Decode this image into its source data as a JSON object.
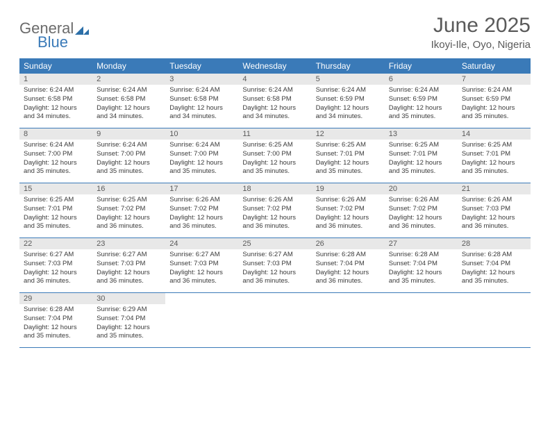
{
  "logo": {
    "text1": "General",
    "text2": "Blue",
    "mark_color": "#2c6fa8"
  },
  "title": "June 2025",
  "location": "Ikoyi-Ile, Oyo, Nigeria",
  "header_bg": "#3a7ab8",
  "header_fg": "#ffffff",
  "daynum_bg": "#e8e8e8",
  "border_color": "#3a7ab8",
  "weekdays": [
    "Sunday",
    "Monday",
    "Tuesday",
    "Wednesday",
    "Thursday",
    "Friday",
    "Saturday"
  ],
  "weeks": [
    [
      {
        "n": "1",
        "sunrise": "6:24 AM",
        "sunset": "6:58 PM",
        "daylight": "12 hours and 34 minutes."
      },
      {
        "n": "2",
        "sunrise": "6:24 AM",
        "sunset": "6:58 PM",
        "daylight": "12 hours and 34 minutes."
      },
      {
        "n": "3",
        "sunrise": "6:24 AM",
        "sunset": "6:58 PM",
        "daylight": "12 hours and 34 minutes."
      },
      {
        "n": "4",
        "sunrise": "6:24 AM",
        "sunset": "6:58 PM",
        "daylight": "12 hours and 34 minutes."
      },
      {
        "n": "5",
        "sunrise": "6:24 AM",
        "sunset": "6:59 PM",
        "daylight": "12 hours and 34 minutes."
      },
      {
        "n": "6",
        "sunrise": "6:24 AM",
        "sunset": "6:59 PM",
        "daylight": "12 hours and 35 minutes."
      },
      {
        "n": "7",
        "sunrise": "6:24 AM",
        "sunset": "6:59 PM",
        "daylight": "12 hours and 35 minutes."
      }
    ],
    [
      {
        "n": "8",
        "sunrise": "6:24 AM",
        "sunset": "7:00 PM",
        "daylight": "12 hours and 35 minutes."
      },
      {
        "n": "9",
        "sunrise": "6:24 AM",
        "sunset": "7:00 PM",
        "daylight": "12 hours and 35 minutes."
      },
      {
        "n": "10",
        "sunrise": "6:24 AM",
        "sunset": "7:00 PM",
        "daylight": "12 hours and 35 minutes."
      },
      {
        "n": "11",
        "sunrise": "6:25 AM",
        "sunset": "7:00 PM",
        "daylight": "12 hours and 35 minutes."
      },
      {
        "n": "12",
        "sunrise": "6:25 AM",
        "sunset": "7:01 PM",
        "daylight": "12 hours and 35 minutes."
      },
      {
        "n": "13",
        "sunrise": "6:25 AM",
        "sunset": "7:01 PM",
        "daylight": "12 hours and 35 minutes."
      },
      {
        "n": "14",
        "sunrise": "6:25 AM",
        "sunset": "7:01 PM",
        "daylight": "12 hours and 35 minutes."
      }
    ],
    [
      {
        "n": "15",
        "sunrise": "6:25 AM",
        "sunset": "7:01 PM",
        "daylight": "12 hours and 35 minutes."
      },
      {
        "n": "16",
        "sunrise": "6:25 AM",
        "sunset": "7:02 PM",
        "daylight": "12 hours and 36 minutes."
      },
      {
        "n": "17",
        "sunrise": "6:26 AM",
        "sunset": "7:02 PM",
        "daylight": "12 hours and 36 minutes."
      },
      {
        "n": "18",
        "sunrise": "6:26 AM",
        "sunset": "7:02 PM",
        "daylight": "12 hours and 36 minutes."
      },
      {
        "n": "19",
        "sunrise": "6:26 AM",
        "sunset": "7:02 PM",
        "daylight": "12 hours and 36 minutes."
      },
      {
        "n": "20",
        "sunrise": "6:26 AM",
        "sunset": "7:02 PM",
        "daylight": "12 hours and 36 minutes."
      },
      {
        "n": "21",
        "sunrise": "6:26 AM",
        "sunset": "7:03 PM",
        "daylight": "12 hours and 36 minutes."
      }
    ],
    [
      {
        "n": "22",
        "sunrise": "6:27 AM",
        "sunset": "7:03 PM",
        "daylight": "12 hours and 36 minutes."
      },
      {
        "n": "23",
        "sunrise": "6:27 AM",
        "sunset": "7:03 PM",
        "daylight": "12 hours and 36 minutes."
      },
      {
        "n": "24",
        "sunrise": "6:27 AM",
        "sunset": "7:03 PM",
        "daylight": "12 hours and 36 minutes."
      },
      {
        "n": "25",
        "sunrise": "6:27 AM",
        "sunset": "7:03 PM",
        "daylight": "12 hours and 36 minutes."
      },
      {
        "n": "26",
        "sunrise": "6:28 AM",
        "sunset": "7:04 PM",
        "daylight": "12 hours and 36 minutes."
      },
      {
        "n": "27",
        "sunrise": "6:28 AM",
        "sunset": "7:04 PM",
        "daylight": "12 hours and 35 minutes."
      },
      {
        "n": "28",
        "sunrise": "6:28 AM",
        "sunset": "7:04 PM",
        "daylight": "12 hours and 35 minutes."
      }
    ],
    [
      {
        "n": "29",
        "sunrise": "6:28 AM",
        "sunset": "7:04 PM",
        "daylight": "12 hours and 35 minutes."
      },
      {
        "n": "30",
        "sunrise": "6:29 AM",
        "sunset": "7:04 PM",
        "daylight": "12 hours and 35 minutes."
      },
      null,
      null,
      null,
      null,
      null
    ]
  ],
  "labels": {
    "sunrise": "Sunrise:",
    "sunset": "Sunset:",
    "daylight": "Daylight:"
  }
}
